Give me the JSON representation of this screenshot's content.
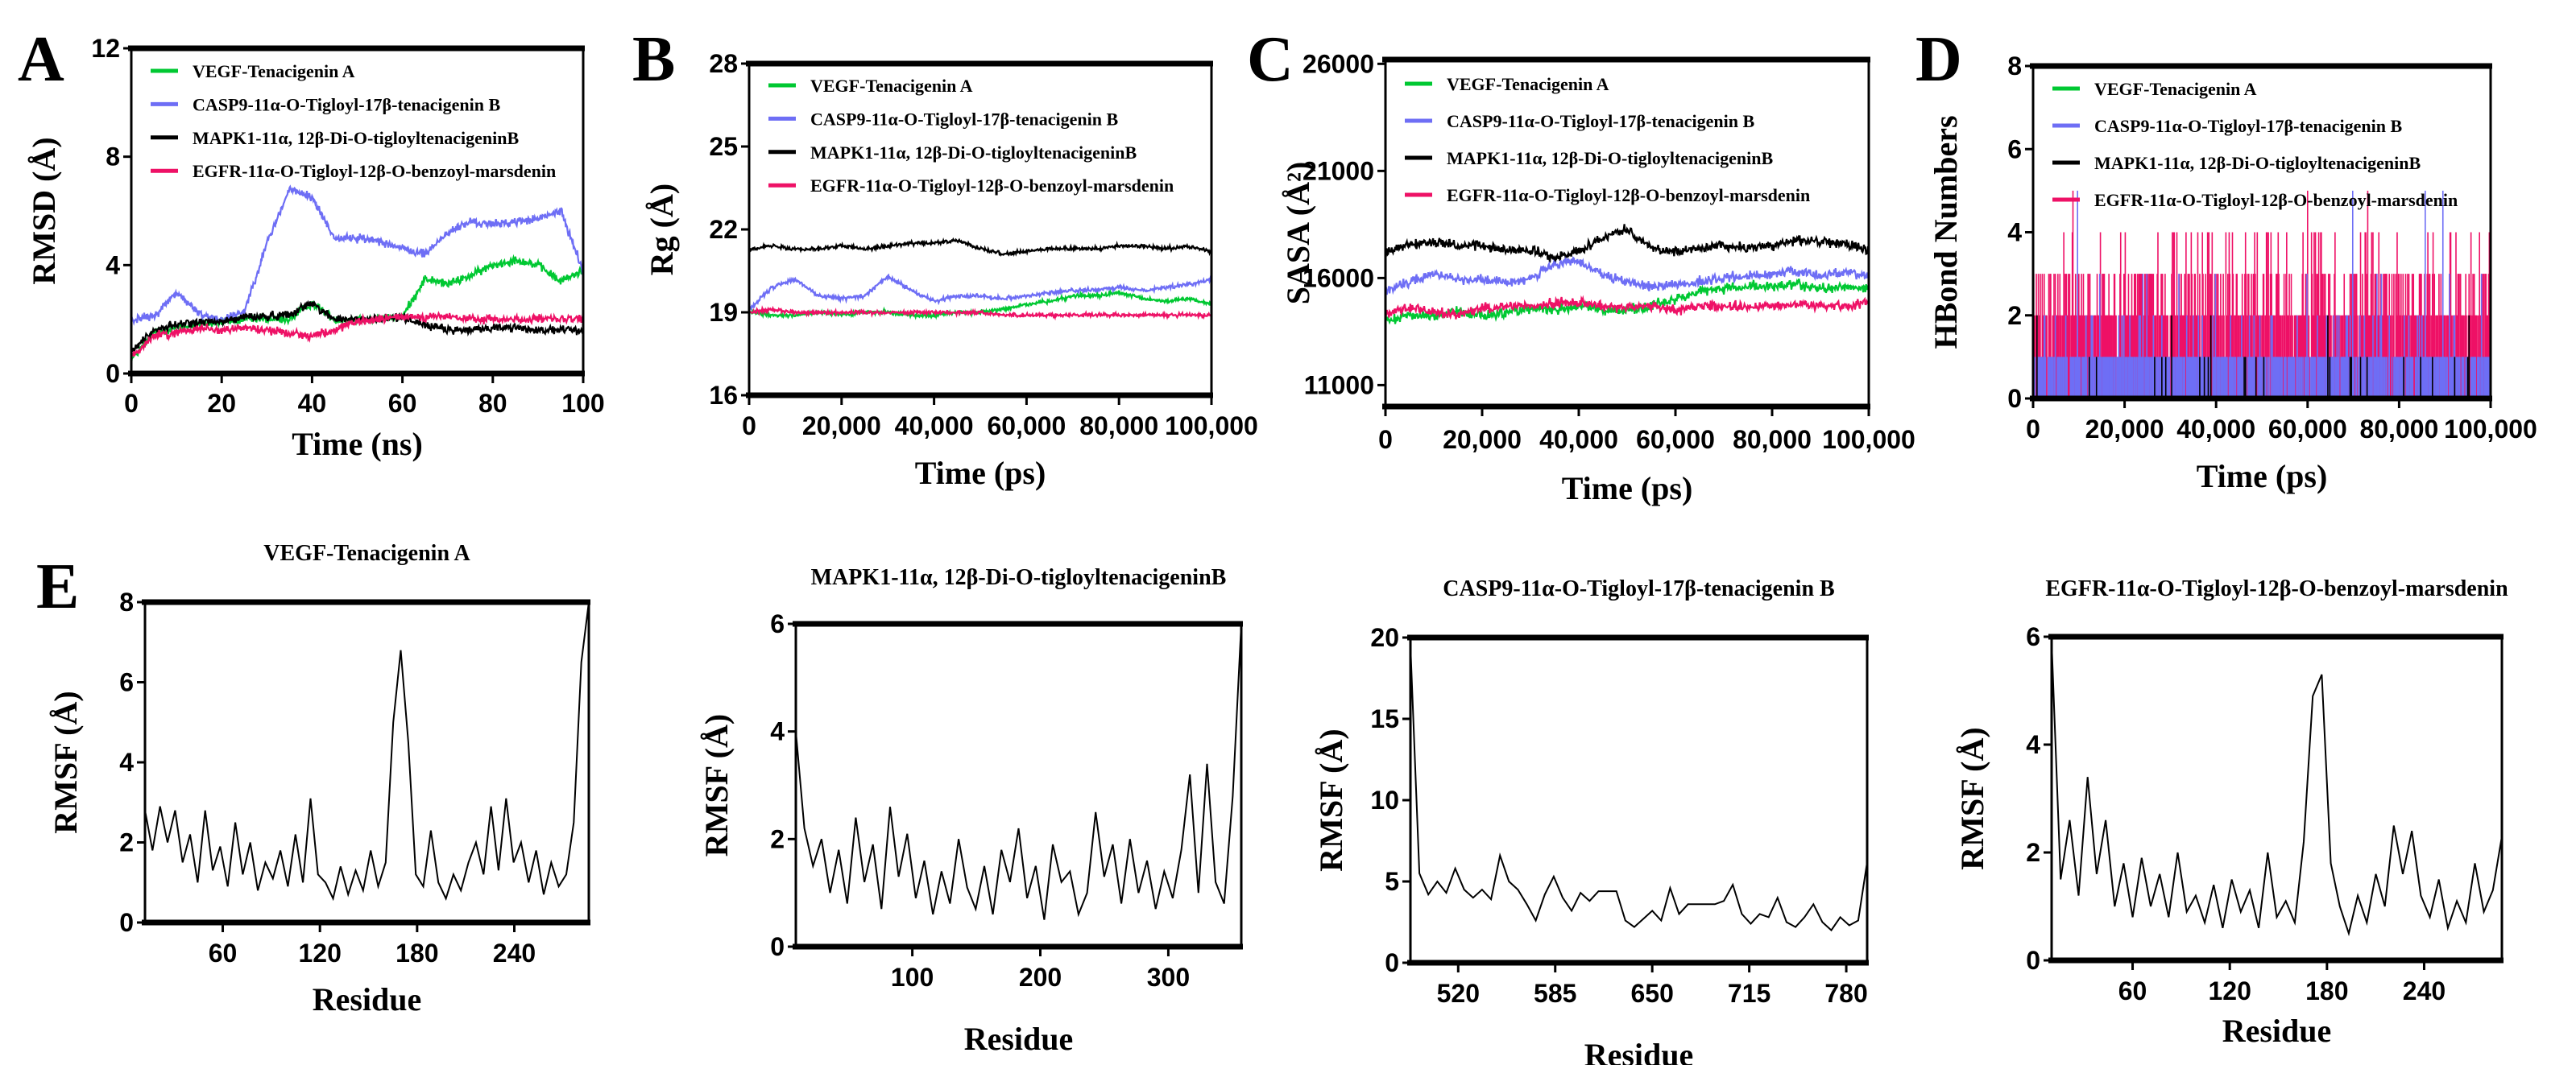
{
  "colors": {
    "VEGF": "#00c832",
    "CASP9": "#6e6ef5",
    "MAPK1": "#000000",
    "EGFR": "#ee1166"
  },
  "legend": [
    {
      "key": "VEGF",
      "label": "VEGF-Tenacigenin A"
    },
    {
      "key": "CASP9",
      "label": "CASP9-11α-O-Tigloyl-17β-tenacigenin B"
    },
    {
      "key": "MAPK1",
      "label": "MAPK1-11α, 12β-Di-O-tigloyltenacigeninB"
    },
    {
      "key": "EGFR",
      "label": "EGFR-11α-O-Tigloyl-12β-O-benzoyl-marsdenin"
    }
  ],
  "chart_data": [
    {
      "panel": "A",
      "type": "line",
      "xlabel": "Time (ns)",
      "ylabel": "RMSD (Å)",
      "xlim": [
        0,
        100
      ],
      "ylim": [
        0,
        12
      ],
      "xticks": [
        0,
        20,
        40,
        60,
        80,
        100
      ],
      "yticks": [
        0,
        4,
        8,
        12
      ],
      "xtick_labels": [
        "0",
        "20",
        "40",
        "60",
        "80",
        "100"
      ],
      "ytick_labels": [
        "0",
        "4",
        "8",
        "12"
      ],
      "legend_position": "top-left",
      "noise": 0.22,
      "x": [
        0,
        5,
        10,
        15,
        20,
        25,
        30,
        35,
        40,
        45,
        50,
        55,
        60,
        65,
        70,
        75,
        80,
        85,
        90,
        95,
        100
      ],
      "series": [
        {
          "key": "VEGF",
          "values": [
            0.5,
            1.5,
            1.7,
            1.8,
            1.9,
            2.0,
            2.0,
            2.0,
            2.6,
            2.0,
            2.0,
            2.0,
            2.1,
            3.5,
            3.3,
            3.6,
            4.0,
            4.2,
            4.0,
            3.4,
            3.8
          ]
        },
        {
          "key": "CASP9",
          "values": [
            2.0,
            2.1,
            3.0,
            2.2,
            2.0,
            2.3,
            4.8,
            6.8,
            6.5,
            5.0,
            5.0,
            4.9,
            4.6,
            4.4,
            5.2,
            5.6,
            5.5,
            5.6,
            5.7,
            6.0,
            3.8
          ]
        },
        {
          "key": "MAPK1",
          "values": [
            0.8,
            1.6,
            1.8,
            1.9,
            1.9,
            2.1,
            2.1,
            2.2,
            2.6,
            2.0,
            2.0,
            2.0,
            2.1,
            1.8,
            1.6,
            1.6,
            1.7,
            1.7,
            1.6,
            1.6,
            1.6
          ]
        },
        {
          "key": "EGFR",
          "values": [
            0.6,
            1.4,
            1.5,
            1.7,
            1.6,
            1.7,
            1.6,
            1.5,
            1.4,
            1.6,
            1.9,
            2.0,
            2.1,
            2.1,
            2.1,
            2.0,
            2.0,
            2.0,
            2.0,
            2.0,
            2.0
          ]
        }
      ]
    },
    {
      "panel": "B",
      "type": "line",
      "xlabel": "Time (ps)",
      "ylabel": "Rg (Å)",
      "xlim": [
        0,
        100000
      ],
      "ylim": [
        16,
        28
      ],
      "xticks": [
        0,
        20000,
        40000,
        60000,
        80000,
        100000
      ],
      "yticks": [
        16,
        19,
        22,
        25,
        28
      ],
      "xtick_labels": [
        "0",
        "20,000",
        "40,000",
        "60,000",
        "80,000",
        "100,000"
      ],
      "ytick_labels": [
        "16",
        "19",
        "22",
        "25",
        "28"
      ],
      "legend_position": "top-left",
      "noise": 0.1,
      "x": [
        0,
        5000,
        10000,
        15000,
        20000,
        25000,
        30000,
        35000,
        40000,
        45000,
        50000,
        55000,
        60000,
        65000,
        70000,
        75000,
        80000,
        85000,
        90000,
        95000,
        100000
      ],
      "series": [
        {
          "key": "VEGF",
          "values": [
            19.0,
            18.9,
            18.9,
            19.0,
            18.9,
            19.0,
            19.0,
            18.9,
            18.9,
            19.0,
            19.0,
            19.1,
            19.3,
            19.4,
            19.6,
            19.6,
            19.7,
            19.5,
            19.4,
            19.5,
            19.3
          ]
        },
        {
          "key": "CASP9",
          "values": [
            19.1,
            19.9,
            20.2,
            19.6,
            19.5,
            19.6,
            20.3,
            19.8,
            19.4,
            19.6,
            19.6,
            19.5,
            19.6,
            19.7,
            19.8,
            19.8,
            19.9,
            19.8,
            19.9,
            20.0,
            20.2
          ]
        },
        {
          "key": "MAPK1",
          "values": [
            21.3,
            21.4,
            21.3,
            21.3,
            21.4,
            21.3,
            21.4,
            21.5,
            21.5,
            21.6,
            21.3,
            21.1,
            21.2,
            21.3,
            21.3,
            21.3,
            21.4,
            21.4,
            21.3,
            21.4,
            21.2
          ]
        },
        {
          "key": "EGFR",
          "values": [
            19.0,
            19.1,
            19.0,
            19.0,
            19.0,
            19.0,
            19.0,
            19.0,
            19.0,
            19.0,
            19.0,
            18.9,
            18.9,
            18.9,
            18.9,
            18.9,
            18.9,
            18.9,
            18.9,
            18.9,
            18.9
          ]
        }
      ]
    },
    {
      "panel": "C",
      "type": "line",
      "xlabel": "Time (ps)",
      "ylabel": "SASA (Å²)",
      "xlim": [
        0,
        100000
      ],
      "ylim": [
        10000,
        26200
      ],
      "xticks": [
        0,
        20000,
        40000,
        60000,
        80000,
        100000
      ],
      "yticks": [
        11000,
        16000,
        21000,
        26000
      ],
      "xtick_labels": [
        "0",
        "20,000",
        "40,000",
        "60,000",
        "80,000",
        "100,000"
      ],
      "ytick_labels": [
        "11000",
        "16000",
        "21000",
        "26000"
      ],
      "legend_position": "top-left",
      "noise": 320,
      "x": [
        0,
        5000,
        10000,
        15000,
        20000,
        25000,
        30000,
        35000,
        40000,
        45000,
        50000,
        55000,
        60000,
        65000,
        70000,
        75000,
        80000,
        85000,
        90000,
        95000,
        100000
      ],
      "series": [
        {
          "key": "MAPK1",
          "values": [
            17200,
            17600,
            17700,
            17500,
            17500,
            17300,
            17300,
            16900,
            17300,
            17900,
            18300,
            17400,
            17200,
            17400,
            17500,
            17400,
            17500,
            17800,
            17700,
            17600,
            17300
          ]
        },
        {
          "key": "CASP9",
          "values": [
            15400,
            15800,
            16200,
            16000,
            15900,
            15800,
            16000,
            16600,
            16800,
            16100,
            15800,
            15600,
            15700,
            15800,
            16000,
            16100,
            16200,
            16300,
            16100,
            16300,
            16100
          ]
        },
        {
          "key": "VEGF",
          "values": [
            14000,
            14300,
            14200,
            14500,
            14200,
            14400,
            14600,
            14500,
            14700,
            14500,
            14500,
            14700,
            15000,
            15400,
            15500,
            15600,
            15600,
            15700,
            15500,
            15600,
            15500
          ]
        },
        {
          "key": "EGFR",
          "values": [
            14300,
            14600,
            14400,
            14300,
            14600,
            14700,
            14700,
            14800,
            14900,
            14700,
            14600,
            14700,
            14500,
            14700,
            14700,
            14600,
            14700,
            14800,
            14700,
            14700,
            14800
          ]
        }
      ]
    },
    {
      "panel": "D",
      "type": "bar",
      "xlabel": "Time (ps)",
      "ylabel": "HBond Numbers",
      "xlim": [
        0,
        100000
      ],
      "ylim": [
        0,
        8
      ],
      "xticks": [
        0,
        20000,
        40000,
        60000,
        80000,
        100000
      ],
      "yticks": [
        0,
        2,
        4,
        6,
        8
      ],
      "xtick_labels": [
        "0",
        "20,000",
        "40,000",
        "60,000",
        "80,000",
        "100,000"
      ],
      "ytick_labels": [
        "0",
        "2",
        "4",
        "6",
        "8"
      ],
      "legend_position": "top-left",
      "series": [
        {
          "key": "EGFR",
          "count_probabilities": {
            "0": 0.04,
            "1": 0.12,
            "2": 0.45,
            "3": 0.3,
            "4": 0.08,
            "5": 0.01
          }
        },
        {
          "key": "CASP9",
          "count_probabilities": {
            "0": 0.2,
            "1": 0.7,
            "2": 0.08,
            "3": 0.015,
            "5": 0.005
          }
        },
        {
          "key": "MAPK1",
          "count_probabilities": {
            "0": 0.96,
            "1": 0.03,
            "2": 0.01
          }
        },
        {
          "key": "VEGF",
          "count_probabilities": {
            "0": 1.0
          }
        }
      ]
    },
    {
      "panel": "E",
      "type": "line",
      "title": "VEGF-Tenacigenin A",
      "xlabel": "Residue",
      "ylabel": "RMSF (Å)",
      "xlim": [
        12,
        286
      ],
      "ylim": [
        0,
        8
      ],
      "xticks": [
        60,
        120,
        180,
        240
      ],
      "yticks": [
        0,
        2,
        4,
        6,
        8
      ],
      "xtick_labels": [
        "60",
        "120",
        "180",
        "240"
      ],
      "ytick_labels": [
        "0",
        "2",
        "4",
        "6",
        "8"
      ],
      "values": [
        2.8,
        1.8,
        2.9,
        2.0,
        2.8,
        1.5,
        2.2,
        1.0,
        2.8,
        1.3,
        1.9,
        0.9,
        2.5,
        1.2,
        2.0,
        0.8,
        1.5,
        1.1,
        1.8,
        0.9,
        2.2,
        1.0,
        3.1,
        1.2,
        1.0,
        0.6,
        1.4,
        0.7,
        1.3,
        0.8,
        1.8,
        0.9,
        1.5,
        5.0,
        6.8,
        4.5,
        1.2,
        0.9,
        2.3,
        1.0,
        0.6,
        1.2,
        0.8,
        1.5,
        2.0,
        1.2,
        2.9,
        1.3,
        3.1,
        1.5,
        2.0,
        1.0,
        1.8,
        0.7,
        1.5,
        0.9,
        1.2,
        2.5,
        6.5,
        8.0
      ]
    },
    {
      "type": "line",
      "title": "MAPK1-11α, 12β-Di-O-tigloyltenacigeninB",
      "xlabel": "Residue",
      "ylabel": "RMSF (Å)",
      "xlim": [
        9,
        357
      ],
      "ylim": [
        0,
        6
      ],
      "xticks": [
        100,
        200,
        300
      ],
      "yticks": [
        0,
        2,
        4,
        6
      ],
      "xtick_labels": [
        "100",
        "200",
        "300"
      ],
      "ytick_labels": [
        "0",
        "2",
        "4",
        "6"
      ],
      "values": [
        4.0,
        2.2,
        1.5,
        2.0,
        1.0,
        1.8,
        0.8,
        2.4,
        1.2,
        1.9,
        0.7,
        2.6,
        1.3,
        2.1,
        0.9,
        1.6,
        0.6,
        1.4,
        0.8,
        2.0,
        1.1,
        0.7,
        1.5,
        0.6,
        1.8,
        1.2,
        2.2,
        0.9,
        1.5,
        0.5,
        1.9,
        1.2,
        1.4,
        0.6,
        1.0,
        2.5,
        1.3,
        1.9,
        0.8,
        2.0,
        1.0,
        1.6,
        0.7,
        1.4,
        0.9,
        1.8,
        3.2,
        1.0,
        3.4,
        1.2,
        0.8,
        2.8,
        6.0
      ]
    },
    {
      "type": "line",
      "title": "CASP9-11α-O-Tigloyl-17β-tenacigenin B",
      "xlabel": "Residue",
      "ylabel": "RMSF (Å)",
      "xlim": [
        488,
        794
      ],
      "ylim": [
        0,
        20
      ],
      "xticks": [
        520,
        585,
        650,
        715,
        780
      ],
      "yticks": [
        0,
        5,
        10,
        15,
        20
      ],
      "xtick_labels": [
        "520",
        "585",
        "650",
        "715",
        "780"
      ],
      "ytick_labels": [
        "0",
        "5",
        "10",
        "15",
        "20"
      ],
      "values": [
        19.5,
        5.5,
        4.2,
        5.0,
        4.3,
        5.8,
        4.5,
        4.0,
        4.5,
        3.9,
        6.6,
        5.0,
        4.5,
        3.6,
        2.6,
        4.2,
        5.3,
        4.0,
        3.2,
        4.3,
        3.8,
        4.4,
        4.4,
        4.4,
        2.6,
        2.2,
        2.7,
        3.2,
        2.6,
        4.6,
        3.0,
        3.6,
        3.6,
        3.6,
        3.6,
        3.8,
        4.8,
        3.0,
        2.4,
        3.0,
        2.8,
        4.0,
        2.5,
        2.2,
        2.8,
        3.6,
        2.5,
        2.0,
        2.8,
        2.3,
        2.6,
        6.2
      ]
    },
    {
      "type": "line",
      "title": "EGFR-11α-O-Tigloyl-12β-O-benzoyl-marsdenin",
      "xlabel": "Residue",
      "ylabel": "RMSF (Å)",
      "xlim": [
        10,
        288
      ],
      "ylim": [
        0,
        6
      ],
      "xticks": [
        60,
        120,
        180,
        240
      ],
      "yticks": [
        0,
        2,
        4,
        6
      ],
      "xtick_labels": [
        "60",
        "120",
        "180",
        "240"
      ],
      "ytick_labels": [
        "0",
        "2",
        "4",
        "6"
      ],
      "values": [
        5.9,
        1.5,
        2.6,
        1.2,
        3.4,
        1.6,
        2.6,
        1.0,
        1.8,
        0.8,
        1.9,
        1.0,
        1.6,
        0.8,
        2.0,
        0.9,
        1.2,
        0.7,
        1.4,
        0.6,
        1.5,
        0.9,
        1.3,
        0.6,
        2.0,
        0.8,
        1.1,
        0.7,
        2.2,
        4.9,
        5.3,
        1.8,
        1.0,
        0.5,
        1.2,
        0.7,
        1.6,
        1.0,
        2.5,
        1.6,
        2.4,
        1.2,
        0.8,
        1.5,
        0.6,
        1.1,
        0.7,
        1.8,
        0.9,
        1.3,
        2.3
      ]
    }
  ]
}
